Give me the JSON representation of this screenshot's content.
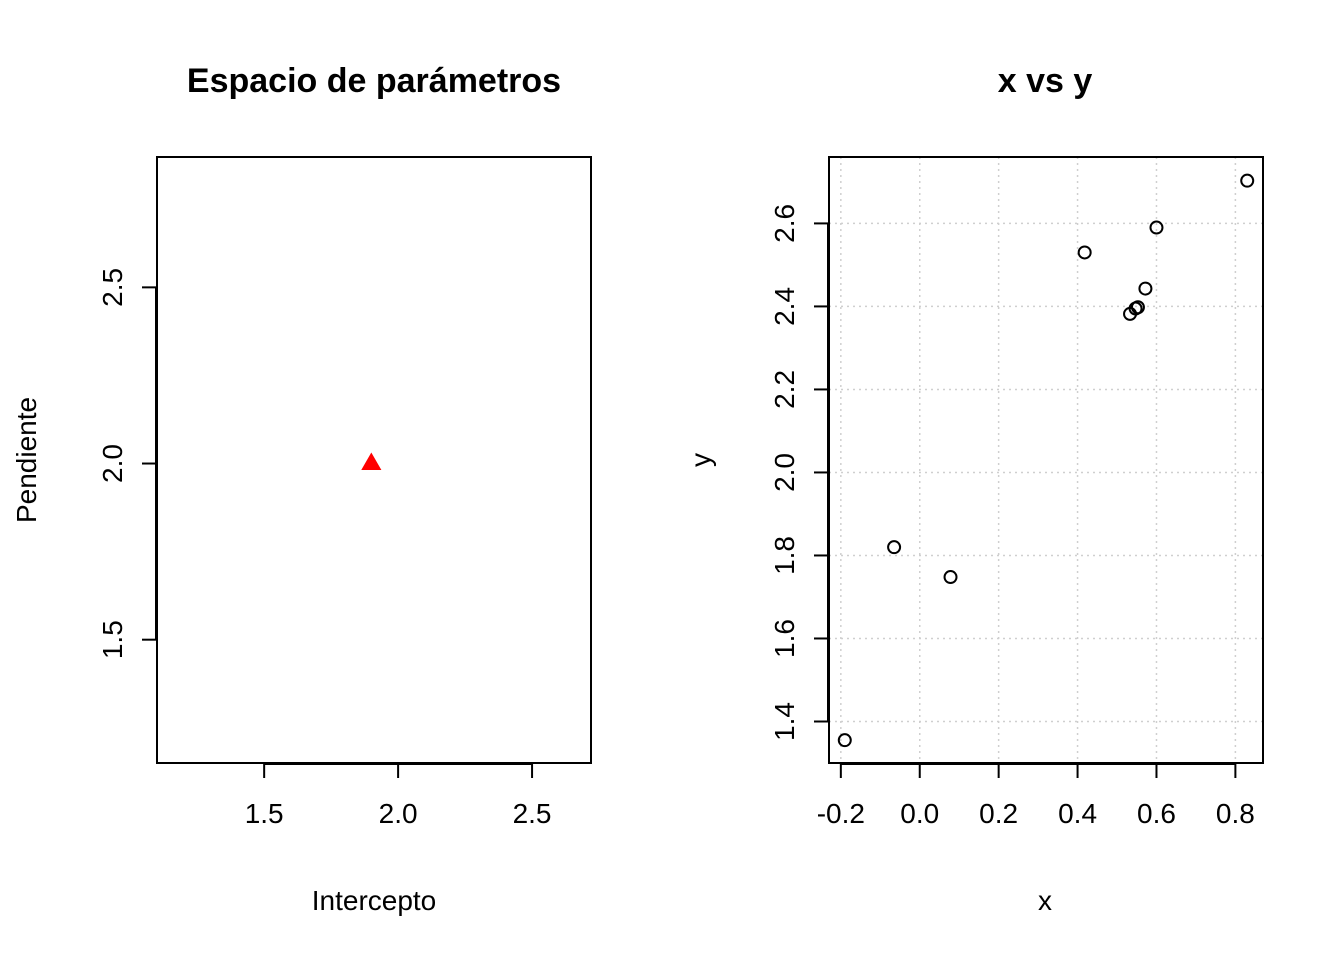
{
  "chart_data": [
    {
      "type": "scatter",
      "title": "Espacio de parámetros",
      "xlabel": "Intercepto",
      "ylabel": "Pendiente",
      "xlim": [
        1.1,
        2.72
      ],
      "ylim": [
        1.15,
        2.87
      ],
      "xticks": [
        1.5,
        2.0,
        2.5
      ],
      "yticks": [
        1.5,
        2.0,
        2.5
      ],
      "xtick_labels": [
        "1.5",
        "2.0",
        "2.5"
      ],
      "ytick_labels": [
        "1.5",
        "2.0",
        "2.5"
      ],
      "grid": false,
      "series": [
        {
          "marker": "filled-triangle",
          "color": "#ff0000",
          "points": [
            {
              "x": 1.9,
              "y": 2.0
            }
          ]
        }
      ]
    },
    {
      "type": "scatter",
      "title": "x vs y",
      "xlabel": "x",
      "ylabel": "y",
      "xlim": [
        -0.23,
        0.87
      ],
      "ylim": [
        1.3,
        2.76
      ],
      "xticks": [
        -0.2,
        0.0,
        0.2,
        0.4,
        0.6,
        0.8
      ],
      "yticks": [
        1.4,
        1.6,
        1.8,
        2.0,
        2.2,
        2.4,
        2.6
      ],
      "xtick_labels": [
        "-0.2",
        "0.0",
        "0.2",
        "0.4",
        "0.6",
        "0.8"
      ],
      "ytick_labels": [
        "1.4",
        "1.6",
        "1.8",
        "2.0",
        "2.2",
        "2.4",
        "2.6"
      ],
      "grid": true,
      "series": [
        {
          "marker": "open-circle",
          "color": "#000000",
          "points": [
            {
              "x": -0.19,
              "y": 1.355
            },
            {
              "x": -0.065,
              "y": 1.82
            },
            {
              "x": 0.078,
              "y": 1.748
            },
            {
              "x": 0.418,
              "y": 2.53
            },
            {
              "x": 0.533,
              "y": 2.382
            },
            {
              "x": 0.547,
              "y": 2.395
            },
            {
              "x": 0.553,
              "y": 2.398
            },
            {
              "x": 0.572,
              "y": 2.443
            },
            {
              "x": 0.6,
              "y": 2.59
            },
            {
              "x": 0.83,
              "y": 2.703
            }
          ]
        }
      ]
    }
  ]
}
